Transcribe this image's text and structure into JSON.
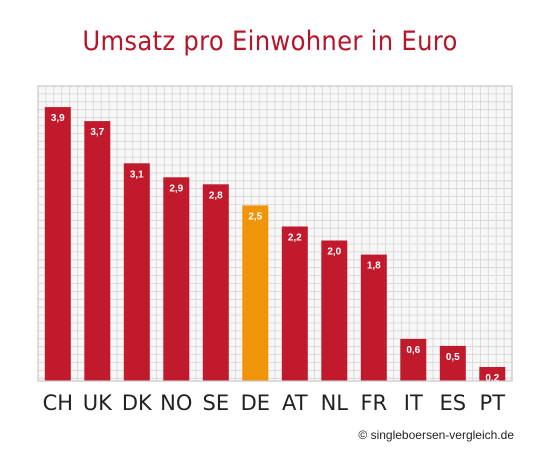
{
  "colors": {
    "accent": "#c01a2c",
    "highlight": "#f0940a",
    "title": "#b5162a",
    "grid": "#d4d4d4",
    "frame": "#c8c8c8"
  },
  "credit": "© singleboersen-vergleich.de",
  "chart_data": {
    "type": "bar",
    "title": "Umsatz pro Einwohner in Euro",
    "xlabel": "",
    "ylabel": "",
    "ylim": [
      0,
      4.2
    ],
    "grid": true,
    "categories": [
      "CH",
      "UK",
      "DK",
      "NO",
      "SE",
      "DE",
      "AT",
      "NL",
      "FR",
      "IT",
      "ES",
      "PT"
    ],
    "values": [
      3.9,
      3.7,
      3.1,
      2.9,
      2.8,
      2.5,
      2.2,
      2.0,
      1.8,
      0.6,
      0.5,
      0.2
    ],
    "value_labels": [
      "3,9",
      "3,7",
      "3,1",
      "2,9",
      "2,8",
      "2,5",
      "2,2",
      "2,0",
      "1,8",
      "0,6",
      "0,5",
      "0,2"
    ],
    "highlight_category": "DE"
  }
}
